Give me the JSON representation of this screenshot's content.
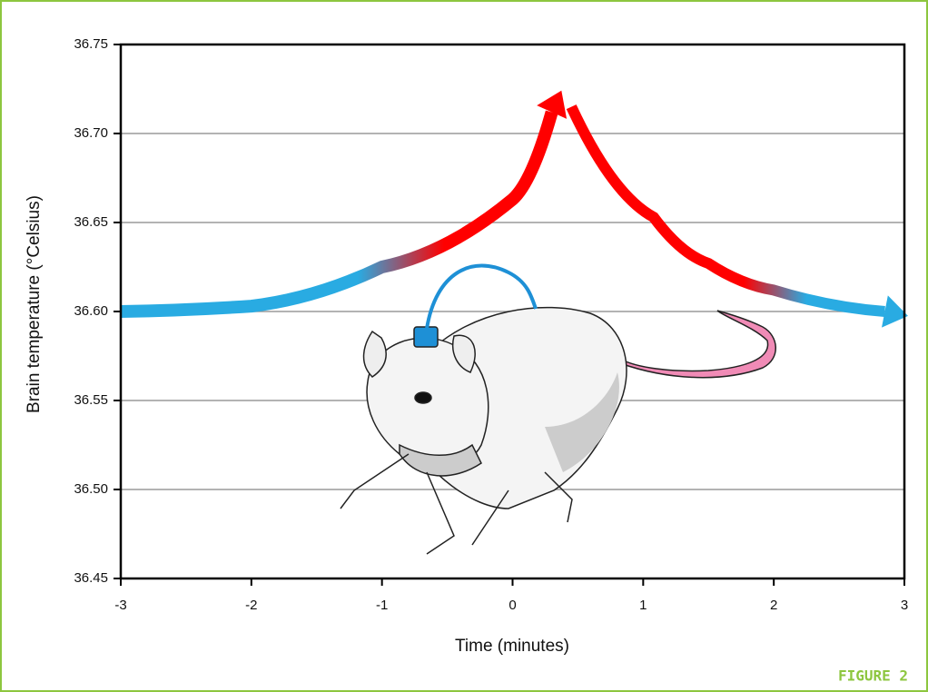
{
  "chart_data": {
    "type": "line",
    "x_label": "Time (minutes)",
    "y_label": "Brain temperature (°Celsius)",
    "figure_label": "FIGURE 2",
    "xlim": [
      -3,
      3
    ],
    "xticks": [
      -3,
      -2,
      -1,
      0,
      1,
      2,
      3
    ],
    "ylim": [
      36.45,
      36.75
    ],
    "yticks": [
      {
        "value": 36.45,
        "label": "36.45"
      },
      {
        "value": 36.5,
        "label": "36.50"
      },
      {
        "value": 36.55,
        "label": "36.55"
      },
      {
        "value": 36.6,
        "label": "36.60"
      },
      {
        "value": 36.65,
        "label": "36.65"
      },
      {
        "value": 36.7,
        "label": "36.70"
      },
      {
        "value": 36.75,
        "label": "36.75"
      }
    ],
    "grid": true,
    "series": [
      {
        "colors": [
          "#29abe2",
          "#ff0000"
        ],
        "x": [
          -3,
          -2,
          -1,
          0,
          0.3
        ],
        "values": [
          36.6,
          36.603,
          36.625,
          36.663,
          36.712
        ]
      },
      {
        "colors": [
          "#ff0000",
          "#29abe2"
        ],
        "x": [
          0.45,
          1.08,
          1.5,
          2,
          2.85
        ],
        "values": [
          36.715,
          36.653,
          36.627,
          36.612,
          36.6
        ]
      }
    ]
  }
}
